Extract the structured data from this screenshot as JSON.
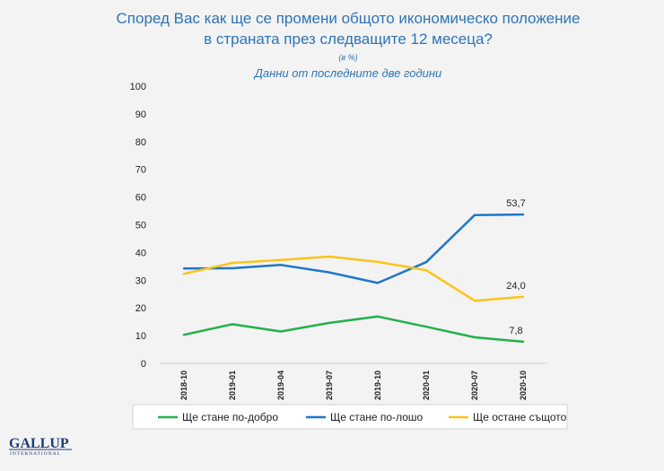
{
  "chart_data": {
    "type": "line",
    "title_lines": [
      "Според Вас как ще се промени общото икономическо положение",
      "в страната през следващите 12 месеца?"
    ],
    "units": "(в %)",
    "subtitle": "Данни от последните две години",
    "categories": [
      "2018-10",
      "2019-01",
      "2019-04",
      "2019-07",
      "2019-10",
      "2020-01",
      "2020-07",
      "2020-10"
    ],
    "ylim": [
      0,
      100
    ],
    "yticks": [
      0,
      10,
      20,
      30,
      40,
      50,
      60,
      70,
      80,
      90,
      100
    ],
    "legend_position": "bottom",
    "grid": false,
    "series": [
      {
        "name": "Ще стане по-добро",
        "color": "#23b04b",
        "values": [
          10.3,
          14.1,
          11.5,
          14.6,
          16.9,
          13.2,
          9.4,
          7.8
        ],
        "end_label": "7,8"
      },
      {
        "name": "Ще стане по-лошо",
        "color": "#1f77c7",
        "values": [
          34.2,
          34.3,
          35.5,
          32.8,
          29.0,
          36.5,
          53.5,
          53.7
        ],
        "end_label": "53,7"
      },
      {
        "name": "Ще остане същото",
        "color": "#fcc419",
        "values": [
          32.3,
          36.2,
          37.3,
          38.5,
          36.6,
          33.6,
          22.6,
          24.0
        ],
        "end_label": "24,0"
      }
    ]
  },
  "logo": {
    "main": "GALLUP",
    "sub": "INTERNATIONAL"
  }
}
